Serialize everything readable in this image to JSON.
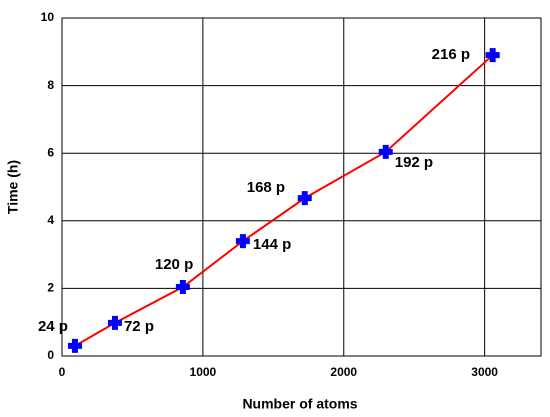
{
  "chart_data": {
    "type": "scatter",
    "x_label": "Number of atoms",
    "y_label": "Time (h)",
    "x": [
      92,
      376,
      858,
      1284,
      1723,
      2298,
      3057
    ],
    "values": [
      0.3,
      0.98,
      2.04,
      3.4,
      4.67,
      6.04,
      8.9
    ],
    "labels": [
      "24 p",
      "72 p",
      "120 p",
      "144 p",
      "168 p",
      "192 p",
      "216 p"
    ],
    "marker_color": "#0000ff",
    "line_color": "#ff0000",
    "xlim": [
      0,
      3400
    ],
    "xticks": [
      0,
      1000,
      2000,
      3000
    ],
    "ylim": [
      0,
      10
    ],
    "yticks": [
      0,
      2,
      4,
      6,
      8,
      10
    ],
    "grid": true
  }
}
